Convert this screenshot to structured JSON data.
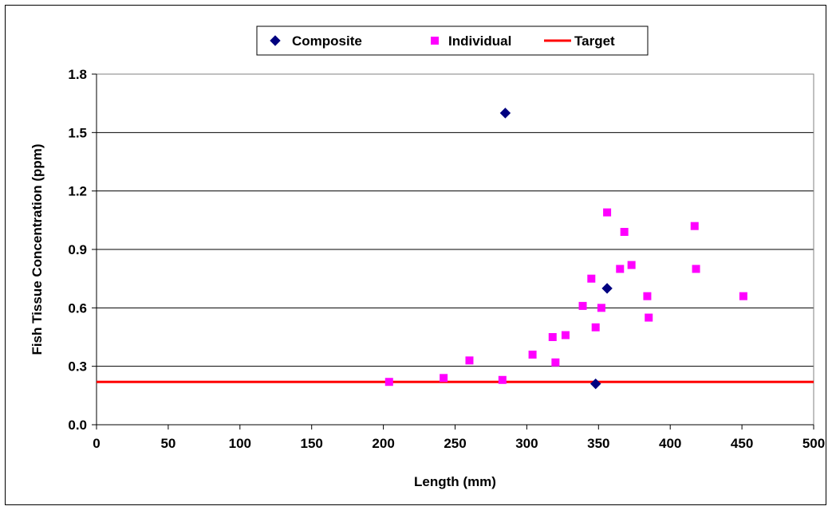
{
  "chart_data": {
    "type": "scatter",
    "xlabel": "Length (mm)",
    "ylabel": "Fish Tissue Concentration (ppm)",
    "xlim": [
      0,
      500
    ],
    "ylim": [
      0,
      1.8
    ],
    "xticks": [
      "0",
      "50",
      "100",
      "150",
      "200",
      "250",
      "300",
      "350",
      "400",
      "450",
      "500"
    ],
    "yticks": [
      "0.0",
      "0.3",
      "0.6",
      "0.9",
      "1.2",
      "1.5",
      "1.8"
    ],
    "grid": "horizontal",
    "legend_position": "top-center",
    "series": [
      {
        "name": "Composite",
        "marker": "diamond",
        "color": "#000080",
        "points": [
          [
            285,
            1.6
          ],
          [
            356,
            0.7
          ],
          [
            348,
            0.21
          ]
        ]
      },
      {
        "name": "Individual",
        "marker": "square",
        "color": "#ff00ff",
        "points": [
          [
            204,
            0.22
          ],
          [
            242,
            0.24
          ],
          [
            260,
            0.33
          ],
          [
            283,
            0.23
          ],
          [
            304,
            0.36
          ],
          [
            318,
            0.45
          ],
          [
            320,
            0.32
          ],
          [
            327,
            0.46
          ],
          [
            339,
            0.61
          ],
          [
            345,
            0.75
          ],
          [
            348,
            0.5
          ],
          [
            352,
            0.6
          ],
          [
            356,
            1.09
          ],
          [
            365,
            0.8
          ],
          [
            368,
            0.99
          ],
          [
            373,
            0.82
          ],
          [
            384,
            0.66
          ],
          [
            385,
            0.55
          ],
          [
            417,
            1.02
          ],
          [
            418,
            0.8
          ],
          [
            451,
            0.66
          ]
        ]
      },
      {
        "name": "Target",
        "marker": "line",
        "color": "#ff0000",
        "value": 0.22
      }
    ]
  }
}
